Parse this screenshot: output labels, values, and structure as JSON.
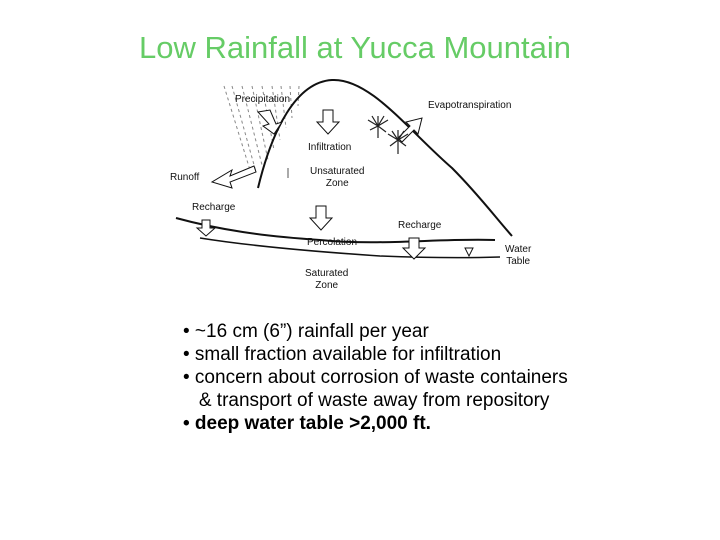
{
  "title": "Low Rainfall at Yucca Mountain",
  "diagram": {
    "labels": {
      "precipitation": "Precipitation",
      "evapotranspiration": "Evapotranspiration",
      "infiltration": "Infiltration",
      "runoff": "Runoff",
      "unsaturated_zone": "Unsaturated\nZone",
      "recharge_left": "Recharge",
      "recharge_right": "Recharge",
      "percolation": "Percolation",
      "water_table": "Water\nTable",
      "saturated_zone": "Saturated\nZone"
    }
  },
  "bullets": [
    {
      "text": "• ~16 cm (6”) rainfall per year",
      "bold": false
    },
    {
      "text": "• small fraction available for infiltration",
      "bold": false
    },
    {
      "text": "• concern about corrosion of waste containers",
      "bold": false
    },
    {
      "text": "   & transport of waste away from repository",
      "bold": false
    },
    {
      "text": "• deep water table >2,000 ft.",
      "bold": true
    }
  ]
}
